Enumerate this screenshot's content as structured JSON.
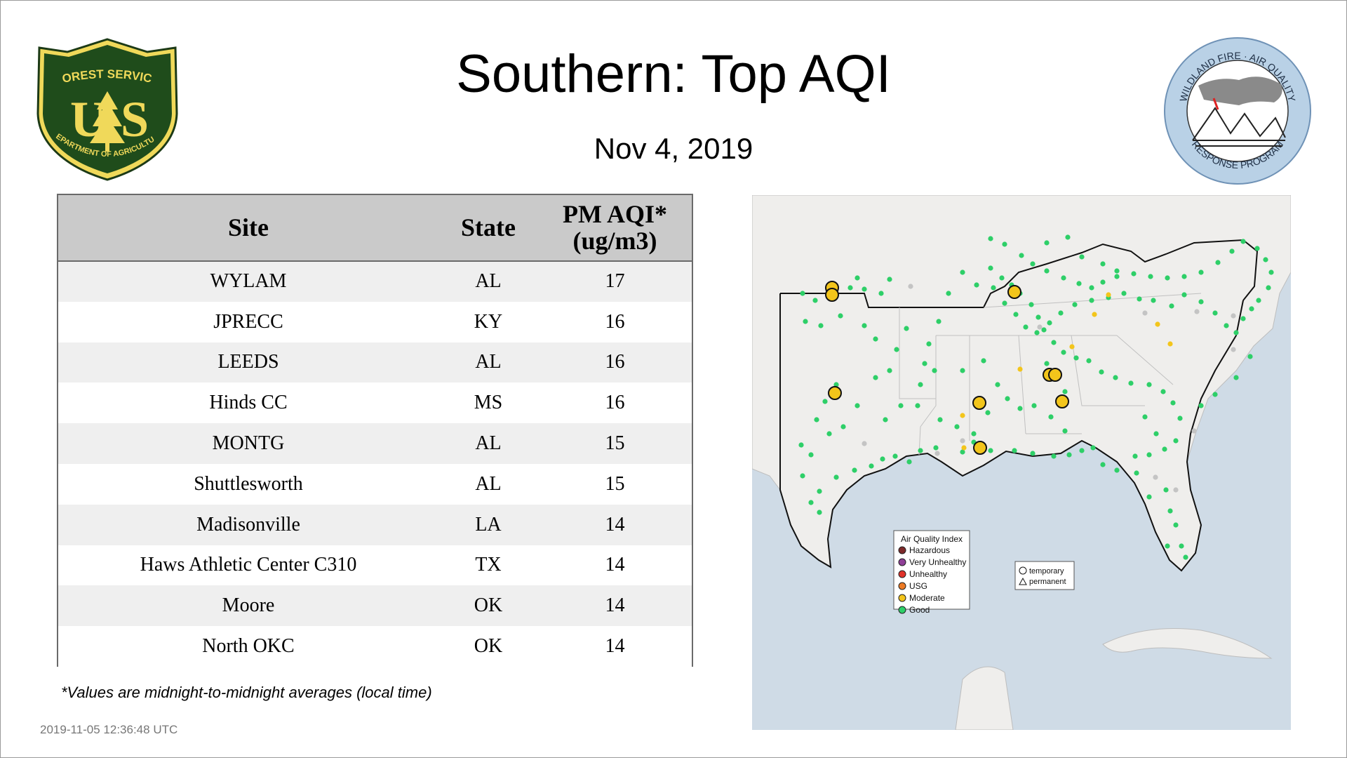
{
  "title": "Southern: Top AQI",
  "date": "Nov  4, 2019",
  "logos": {
    "usfs": {
      "lines": [
        "FOREST SERVICE",
        "U",
        "S",
        "DEPARTMENT OF AGRICULTURE"
      ]
    },
    "wfar": {
      "top_text": "WILDLAND FIRE · AIR QUALITY",
      "bottom_text": "RESPONSE PROGRAM"
    }
  },
  "table": {
    "headers": {
      "site": "Site",
      "state": "State",
      "aqi_line1": "PM AQI*",
      "aqi_line2": "(ug/m3)"
    },
    "rows": [
      {
        "site": "WYLAM",
        "state": "AL",
        "value": "17"
      },
      {
        "site": "JPRECC",
        "state": "KY",
        "value": "16"
      },
      {
        "site": "LEEDS",
        "state": "AL",
        "value": "16"
      },
      {
        "site": "Hinds CC",
        "state": "MS",
        "value": "16"
      },
      {
        "site": "MONTG",
        "state": "AL",
        "value": "15"
      },
      {
        "site": "Shuttlesworth",
        "state": "AL",
        "value": "15"
      },
      {
        "site": "Madisonville",
        "state": "LA",
        "value": "14"
      },
      {
        "site": "Haws Athletic Center C310",
        "state": "TX",
        "value": "14"
      },
      {
        "site": "Moore",
        "state": "OK",
        "value": "14"
      },
      {
        "site": "North OKC",
        "state": "OK",
        "value": "14"
      }
    ]
  },
  "footnote": "*Values are midnight-to-midnight averages (local time)",
  "timestamp": "2019-11-05 12:36:48 UTC",
  "map": {
    "legend": {
      "title": "Air Quality Index",
      "items": [
        {
          "label": "Hazardous",
          "color": "#7e2a2a"
        },
        {
          "label": "Very Unhealthy",
          "color": "#8f3f97"
        },
        {
          "label": "Unhealthy",
          "color": "#e0322a"
        },
        {
          "label": "USG",
          "color": "#ec7a24"
        },
        {
          "label": "Moderate",
          "color": "#f3c51b"
        },
        {
          "label": "Good",
          "color": "#2ecf68"
        }
      ]
    },
    "shape_legend": {
      "temporary": "temporary",
      "permanent": "permanent"
    },
    "colors": {
      "water": "#cfdbe6",
      "land": "#efeeec",
      "good": "#2ecf68",
      "moderate": "#f3c51b",
      "nodata": "#c4c4c4"
    }
  }
}
